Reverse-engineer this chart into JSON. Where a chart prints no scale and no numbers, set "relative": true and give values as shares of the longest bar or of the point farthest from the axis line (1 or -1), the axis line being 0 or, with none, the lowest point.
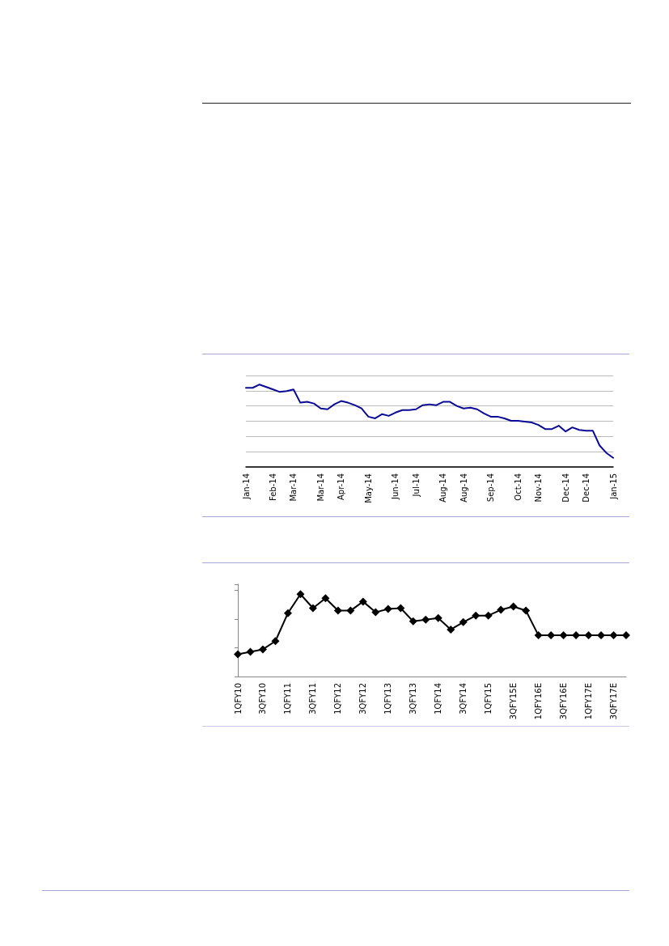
{
  "chart_data": [
    {
      "type": "line",
      "relative": true,
      "grid": "y",
      "marker": "none",
      "line_style": "solid",
      "tick_labels": "x",
      "categories": [
        "Jan-14",
        null,
        null,
        null,
        "Feb-14",
        null,
        null,
        "Mar-14",
        null,
        null,
        null,
        "Mar-14",
        null,
        null,
        "Apr-14",
        null,
        null,
        null,
        "May-14",
        null,
        null,
        null,
        "Jun-14",
        null,
        null,
        "Jul-14",
        null,
        null,
        null,
        "Aug-14",
        null,
        null,
        "Aug-14",
        null,
        null,
        null,
        "Sep-14",
        null,
        null,
        null,
        "Oct-14",
        null,
        null,
        "Nov-14",
        null,
        null,
        null,
        "Dec-14",
        null,
        null,
        "Dec-14",
        null,
        null,
        null,
        "Jan-15"
      ],
      "series": [
        {
          "color": "#0a0a96",
          "values": [
            0.96,
            0.96,
            1,
            0.97,
            0.94,
            0.91,
            0.92,
            0.94,
            0.78,
            0.79,
            0.77,
            0.71,
            0.7,
            0.76,
            0.8,
            0.78,
            0.75,
            0.71,
            0.61,
            0.59,
            0.64,
            0.62,
            0.66,
            0.69,
            0.69,
            0.7,
            0.75,
            0.76,
            0.75,
            0.79,
            0.79,
            0.74,
            0.71,
            0.72,
            0.7,
            0.65,
            0.61,
            0.61,
            0.59,
            0.56,
            0.56,
            0.55,
            0.54,
            0.51,
            0.46,
            0.46,
            0.5,
            0.43,
            0.48,
            0.45,
            0.44,
            0.44,
            0.26,
            0.17,
            0.11
          ]
        }
      ]
    },
    {
      "type": "line",
      "relative": true,
      "grid": false,
      "marker": "diamond",
      "line_style": "solid",
      "tick_labels": "x",
      "categories": [
        "1QFY10",
        null,
        "3QFY10",
        null,
        "1QFY11",
        null,
        "3QFY11",
        null,
        "1QFY12",
        null,
        "3QFY12",
        null,
        "1QFY13",
        null,
        "3QFY13",
        null,
        "1QFY14",
        null,
        "3QFY14",
        null,
        "1QFY15",
        null,
        "3QFY15E",
        null,
        "1QFY16E",
        null,
        "3QFY16E",
        null,
        "1QFY17E",
        null,
        "3QFY17E",
        null
      ],
      "series": [
        {
          "color": "#000000",
          "values": [
            0.27,
            0.3,
            0.33,
            0.43,
            0.77,
            1,
            0.83,
            0.95,
            0.8,
            0.8,
            0.91,
            0.78,
            0.82,
            0.83,
            0.67,
            0.69,
            0.71,
            0.57,
            0.66,
            0.74,
            0.74,
            0.81,
            0.85,
            0.8,
            0.5,
            0.5,
            0.5,
            0.5,
            0.5,
            0.5,
            0.5,
            0.5
          ]
        }
      ]
    }
  ]
}
